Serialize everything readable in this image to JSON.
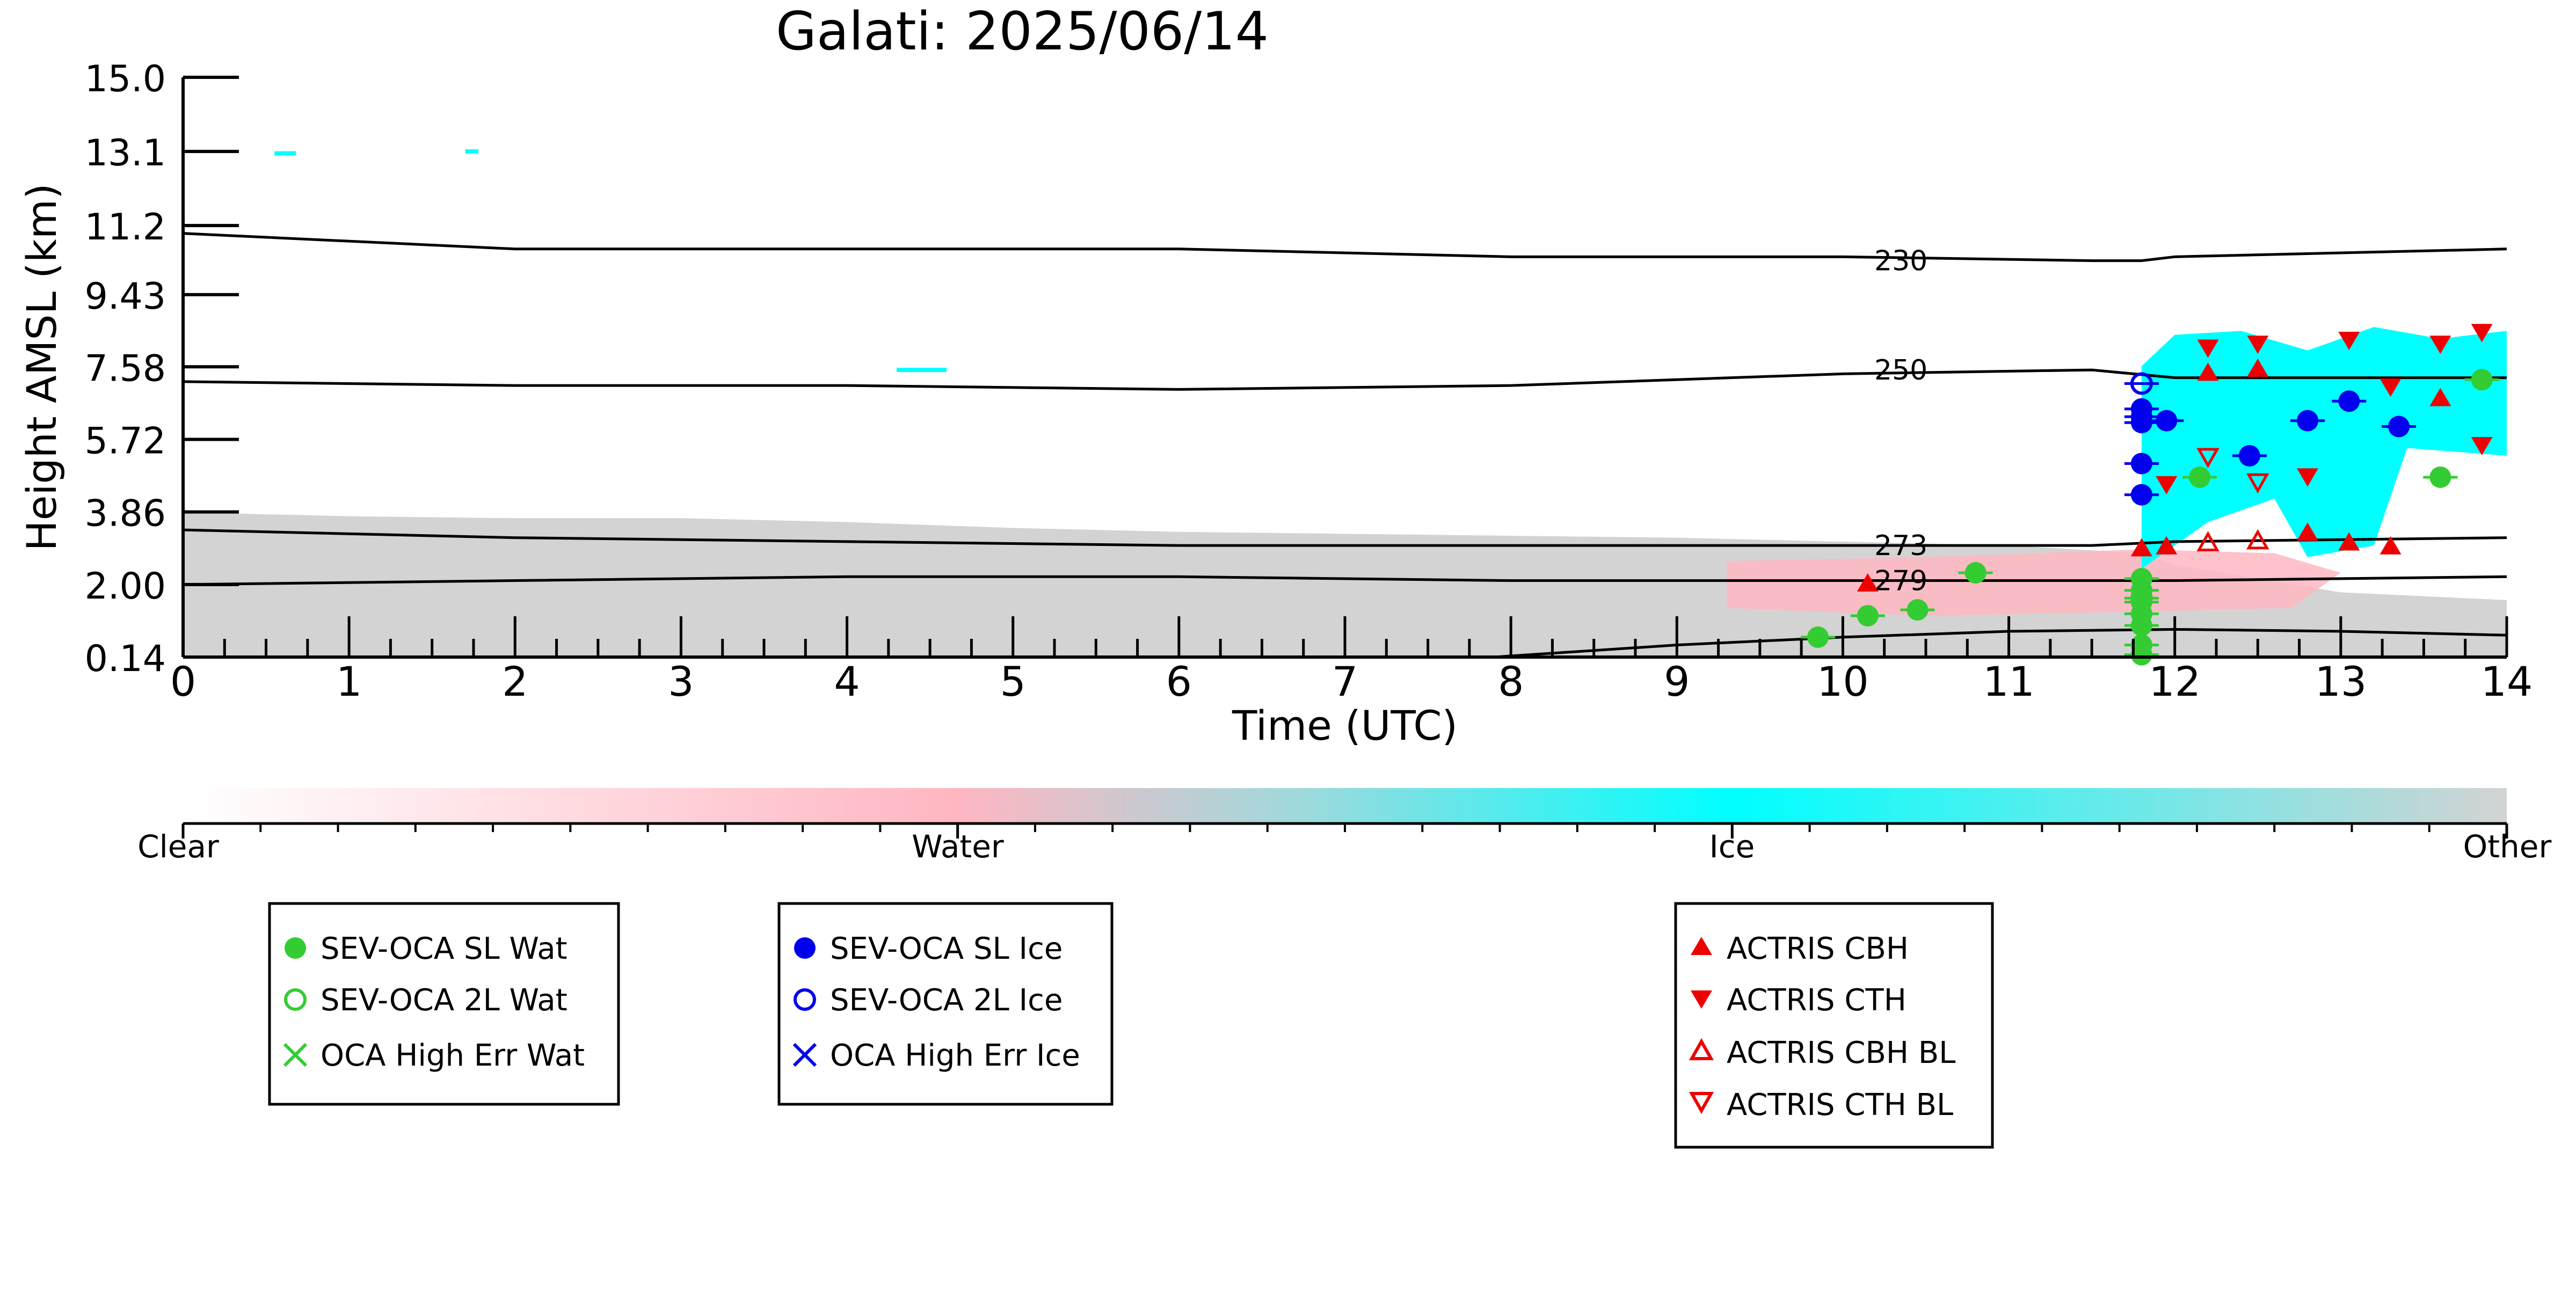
{
  "chart_data": {
    "type": "scatter",
    "title": "Galati: 2025/06/14",
    "xlabel": "Time (UTC)",
    "ylabel": "Height AMSL (km)",
    "xlim": [
      0,
      14
    ],
    "ylim": [
      0.14,
      15.0
    ],
    "x_ticks": [
      "0",
      "1",
      "2",
      "3",
      "4",
      "5",
      "6",
      "7",
      "8",
      "9",
      "10",
      "11",
      "12",
      "13",
      "14"
    ],
    "y_ticks": [
      "0.14",
      "2.00",
      "3.86",
      "5.72",
      "7.58",
      "9.43",
      "11.2",
      "13.1",
      "15.0"
    ],
    "grid": false,
    "background_image": "cloud classification curtain (clear / water / ice / other)",
    "colors": {
      "clear": "#ffffff",
      "water": "#ffb6c1",
      "ice": "#00ffff",
      "other": "#d3d3d3",
      "sev_wat": "#33cc33",
      "sev_ice": "#0000ee",
      "actris": "#ee0000",
      "contour": "#000000"
    },
    "colorbar": {
      "labels": [
        "Clear",
        "Water",
        "Ice",
        "Other"
      ]
    },
    "isotherms": [
      {
        "label": "230",
        "points": [
          [
            0,
            11.0
          ],
          [
            2,
            10.6
          ],
          [
            4,
            10.6
          ],
          [
            6,
            10.6
          ],
          [
            8,
            10.4
          ],
          [
            10,
            10.4
          ],
          [
            11.5,
            10.3
          ],
          [
            11.8,
            10.3
          ],
          [
            12,
            10.4
          ],
          [
            14,
            10.6
          ]
        ]
      },
      {
        "label": "250",
        "points": [
          [
            0,
            7.2
          ],
          [
            2,
            7.1
          ],
          [
            4,
            7.1
          ],
          [
            6,
            7.0
          ],
          [
            8,
            7.1
          ],
          [
            10,
            7.4
          ],
          [
            11.5,
            7.5
          ],
          [
            12,
            7.3
          ],
          [
            14,
            7.3
          ]
        ]
      },
      {
        "label": "273",
        "points": [
          [
            0,
            3.4
          ],
          [
            2,
            3.2
          ],
          [
            4,
            3.1
          ],
          [
            6,
            3.0
          ],
          [
            8,
            3.0
          ],
          [
            10,
            3.0
          ],
          [
            11.5,
            3.0
          ],
          [
            12,
            3.1
          ],
          [
            14,
            3.2
          ]
        ]
      },
      {
        "label": "279",
        "points": [
          [
            0,
            2.0
          ],
          [
            2,
            2.1
          ],
          [
            4,
            2.2
          ],
          [
            6,
            2.2
          ],
          [
            8,
            2.1
          ],
          [
            10,
            2.1
          ],
          [
            11.5,
            2.1
          ],
          [
            12,
            2.1
          ],
          [
            14,
            2.2
          ]
        ]
      },
      {
        "label": "",
        "points": [
          [
            7.9,
            0.14
          ],
          [
            9,
            0.45
          ],
          [
            10,
            0.65
          ],
          [
            11,
            0.8
          ],
          [
            12,
            0.85
          ],
          [
            13,
            0.8
          ],
          [
            14,
            0.7
          ]
        ]
      }
    ],
    "series": [
      {
        "name": "SEV-OCA SL Wat",
        "marker": "filled-circle",
        "color": "#33cc33",
        "points": [
          [
            9.85,
            0.65
          ],
          [
            10.15,
            1.2
          ],
          [
            10.45,
            1.35
          ],
          [
            10.8,
            2.3
          ],
          [
            11.8,
            2.15
          ],
          [
            11.8,
            1.85
          ],
          [
            11.8,
            1.55
          ],
          [
            11.8,
            1.25
          ],
          [
            11.8,
            0.95
          ],
          [
            11.8,
            0.45
          ],
          [
            11.8,
            0.2
          ],
          [
            12.15,
            4.75
          ],
          [
            13.6,
            4.75
          ],
          [
            13.85,
            7.25
          ]
        ]
      },
      {
        "name": "SEV-OCA 2L Wat",
        "marker": "open-circle",
        "color": "#33cc33",
        "points": [
          [
            11.8,
            1.65
          ]
        ]
      },
      {
        "name": "OCA High Err Wat",
        "marker": "x",
        "color": "#33cc33",
        "points": []
      },
      {
        "name": "SEV-OCA SL Ice",
        "marker": "filled-circle",
        "color": "#0000ee",
        "points": [
          [
            11.8,
            6.5
          ],
          [
            11.8,
            6.3
          ],
          [
            11.8,
            6.15
          ],
          [
            11.8,
            5.1
          ],
          [
            11.8,
            4.3
          ],
          [
            11.95,
            6.2
          ],
          [
            12.45,
            5.3
          ],
          [
            12.8,
            6.2
          ],
          [
            13.05,
            6.7
          ],
          [
            13.35,
            6.05
          ]
        ]
      },
      {
        "name": "SEV-OCA 2L Ice",
        "marker": "open-circle",
        "color": "#0000ee",
        "points": [
          [
            11.8,
            7.15
          ]
        ]
      },
      {
        "name": "OCA High Err Ice",
        "marker": "x",
        "color": "#0000ee",
        "points": []
      },
      {
        "name": "ACTRIS CBH",
        "marker": "triangle-up",
        "color": "#ee0000",
        "points": [
          [
            10.15,
            2.0
          ],
          [
            11.8,
            2.9
          ],
          [
            11.95,
            2.95
          ],
          [
            12.2,
            7.4
          ],
          [
            12.5,
            7.5
          ],
          [
            12.8,
            3.3
          ],
          [
            13.05,
            3.05
          ],
          [
            13.3,
            2.95
          ],
          [
            13.6,
            6.75
          ]
        ]
      },
      {
        "name": "ACTRIS CTH",
        "marker": "triangle-down",
        "color": "#ee0000",
        "points": [
          [
            11.95,
            4.6
          ],
          [
            12.2,
            8.1
          ],
          [
            12.5,
            8.2
          ],
          [
            12.8,
            4.8
          ],
          [
            13.05,
            8.3
          ],
          [
            13.3,
            7.1
          ],
          [
            13.6,
            8.2
          ],
          [
            13.85,
            8.5
          ],
          [
            13.85,
            5.6
          ]
        ]
      },
      {
        "name": "ACTRIS CBH BL",
        "marker": "open-triangle-up",
        "color": "#ee0000",
        "points": [
          [
            12.2,
            3.05
          ],
          [
            12.5,
            3.1
          ]
        ]
      },
      {
        "name": "ACTRIS CTH BL",
        "marker": "open-triangle-down",
        "color": "#ee0000",
        "points": [
          [
            12.2,
            5.3
          ],
          [
            12.5,
            4.65
          ]
        ]
      }
    ],
    "legends": [
      {
        "entries": [
          "SEV-OCA SL Wat",
          "SEV-OCA 2L Wat",
          "OCA High Err Wat"
        ]
      },
      {
        "entries": [
          "SEV-OCA SL Ice",
          "SEV-OCA 2L Ice",
          "OCA High Err Ice"
        ]
      },
      {
        "entries": [
          "ACTRIS CBH",
          "ACTRIS CTH",
          "ACTRIS CBH BL",
          "ACTRIS CTH BL"
        ]
      }
    ]
  }
}
